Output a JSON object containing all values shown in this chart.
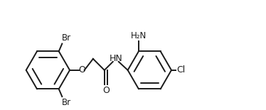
{
  "background_color": "#ffffff",
  "line_color": "#1a1a1a",
  "line_width": 1.4,
  "font_size": 8.5,
  "figsize": [
    3.74,
    1.55
  ],
  "dpi": 100,
  "xlim": [
    -0.5,
    10.5
  ],
  "ylim": [
    -1.8,
    3.2
  ]
}
